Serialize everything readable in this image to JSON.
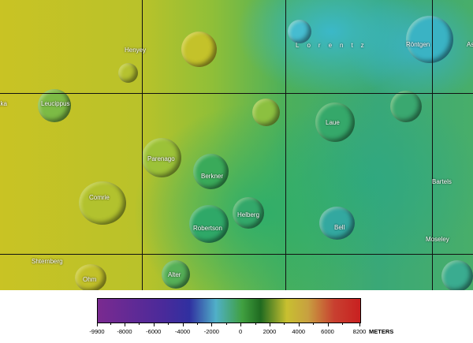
{
  "map": {
    "craters": [
      "Henyey",
      "Leucippus",
      "aka",
      "Comrie",
      "Shternberg",
      "Ohm",
      "Alter",
      "Parenago",
      "Berkner",
      "Robertson",
      "Helberg",
      "Lorentz",
      "Röntgen",
      "As",
      "Laue",
      "Bell",
      "Bartels",
      "Moseley"
    ]
  },
  "legend": {
    "ticks": [
      "-9900",
      "-8000",
      "-6000",
      "-4000",
      "-2000",
      "0",
      "2000",
      "4000",
      "6000",
      "8200"
    ],
    "unit": "METERS",
    "range": [
      -9900,
      8200
    ],
    "colors": [
      "#7a2a90",
      "#3030a0",
      "#50b0c8",
      "#40a040",
      "#c8c030",
      "#c82020"
    ]
  }
}
